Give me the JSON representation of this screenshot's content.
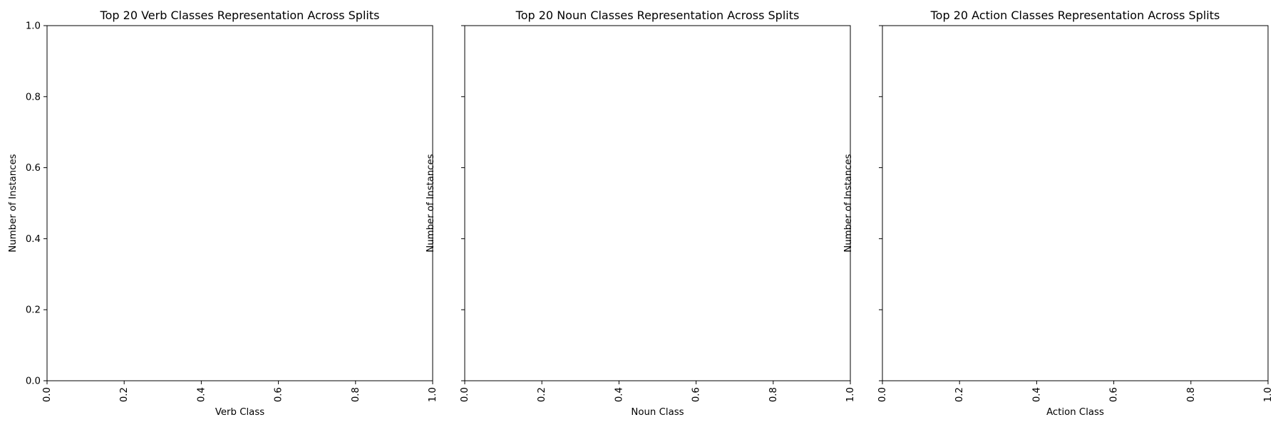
{
  "chart_data": [
    {
      "type": "bar",
      "title": "Top 20 Verb Classes Representation Across Splits",
      "xlabel": "Verb Class",
      "ylabel": "Number of Instances",
      "categories": [],
      "series": [],
      "xlim": [
        0.0,
        1.0
      ],
      "ylim": [
        0.0,
        1.0
      ],
      "x_ticks": [
        "0.0",
        "0.2",
        "0.4",
        "0.6",
        "0.8",
        "1.0"
      ],
      "y_ticks": [
        "0.0",
        "0.2",
        "0.4",
        "0.6",
        "0.8",
        "1.0"
      ],
      "show_y_tick_labels": true,
      "grid": false
    },
    {
      "type": "bar",
      "title": "Top 20 Noun Classes Representation Across Splits",
      "xlabel": "Noun Class",
      "ylabel": "Number of Instances",
      "categories": [],
      "series": [],
      "xlim": [
        0.0,
        1.0
      ],
      "ylim": [
        0.0,
        1.0
      ],
      "x_ticks": [
        "0.0",
        "0.2",
        "0.4",
        "0.6",
        "0.8",
        "1.0"
      ],
      "y_ticks": [
        "0.0",
        "0.2",
        "0.4",
        "0.6",
        "0.8",
        "1.0"
      ],
      "show_y_tick_labels": false,
      "grid": false
    },
    {
      "type": "bar",
      "title": "Top 20 Action Classes Representation Across Splits",
      "xlabel": "Action Class",
      "ylabel": "Number of Instances",
      "categories": [],
      "series": [],
      "xlim": [
        0.0,
        1.0
      ],
      "ylim": [
        0.0,
        1.0
      ],
      "x_ticks": [
        "0.0",
        "0.2",
        "0.4",
        "0.6",
        "0.8",
        "1.0"
      ],
      "y_ticks": [
        "0.0",
        "0.2",
        "0.4",
        "0.6",
        "0.8",
        "1.0"
      ],
      "show_y_tick_labels": false,
      "grid": false
    }
  ],
  "colors": {
    "background": "#ffffff",
    "axes": "#000000",
    "text": "#000000"
  }
}
